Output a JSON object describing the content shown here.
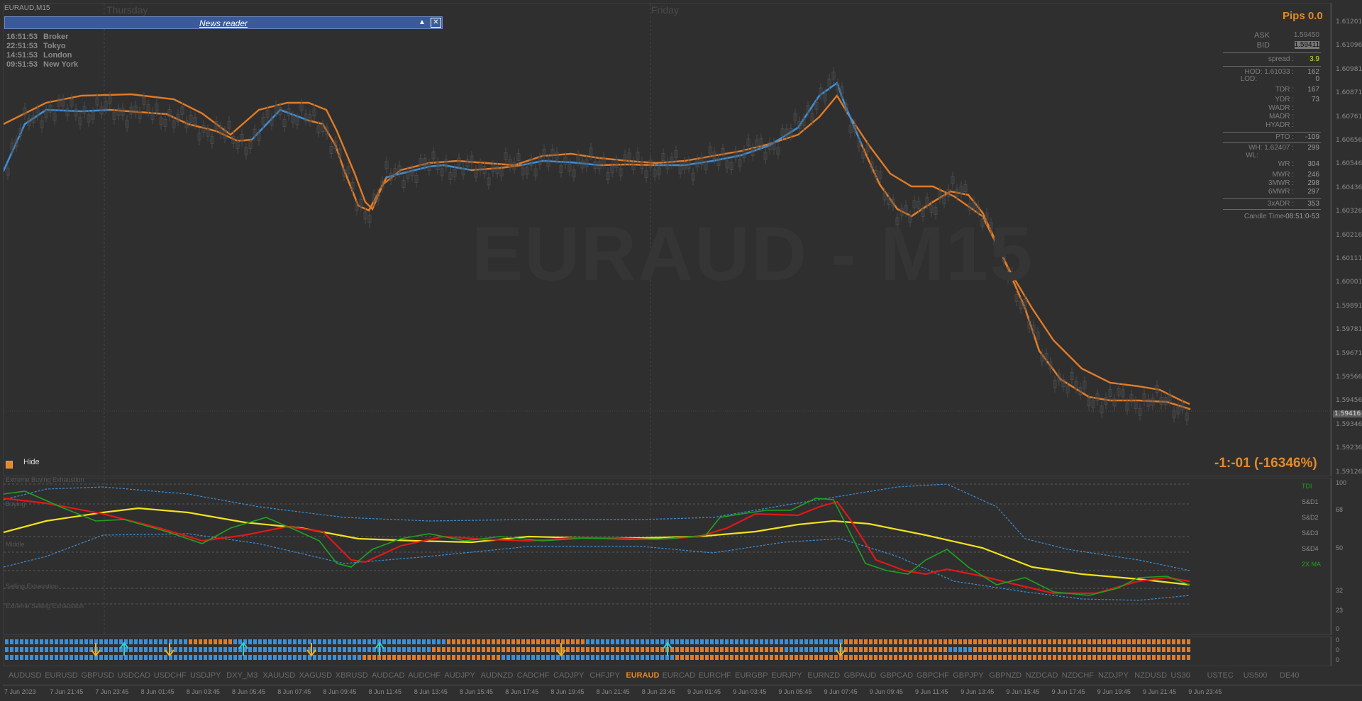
{
  "window": {
    "title": "EURAUD,M15"
  },
  "days": [
    {
      "label": "Thursday"
    },
    {
      "label": "Friday"
    }
  ],
  "news_reader": {
    "title": "News reader",
    "collapse_glyph": "▲",
    "close_glyph": "✕"
  },
  "clocks": [
    {
      "time": "16:51:53",
      "city": "Broker"
    },
    {
      "time": "22:51:53",
      "city": "Tokyo"
    },
    {
      "time": "14:51:53",
      "city": "London"
    },
    {
      "time": "09:51:53",
      "city": "New York"
    }
  ],
  "watermark": "EURAUD - M15",
  "hide_label": "Hide",
  "pnl_text": "-1:-01 (-16346%)",
  "info_panel": {
    "pips": "Pips 0.0",
    "ask_label": "ASK",
    "ask": "1.59450",
    "bid_label": "BID",
    "bid": "1.59411",
    "spread_label": "spread :",
    "spread": "3.9",
    "hod_label": "HOD: 1.61033 :",
    "hod": "162",
    "lod_label": "LOD:",
    "lod": "0",
    "tdr_label": "TDR :",
    "tdr": "167",
    "ydr_label": "YDR :",
    "ydr": "73",
    "wadr_label": "WADR :",
    "wadr": "",
    "madr_label": "MADR :",
    "madr": "",
    "hyadr_label": "HYADR :",
    "hyadr": "",
    "pto_label": "PTO :",
    "pto": "-109",
    "wh_label": "WH: 1.62407 :",
    "wh": "299",
    "wl_label": "WL:",
    "wl": "",
    "wr_label": "WR :",
    "wr": "304",
    "mwr_label": "MWR :",
    "mwr": "246",
    "mwr3_label": "3MWR :",
    "mwr3": "298",
    "mwr6_label": "6MWR :",
    "mwr6": "297",
    "adr3_label": "3xADR :",
    "adr3": "353",
    "candle_label": "Candle Time",
    "candle": "-08:51:0-53"
  },
  "price_axis": [
    "1.61201",
    "1.61096",
    "1.60981",
    "1.60871",
    "1.60761",
    "1.60656",
    "1.60546",
    "1.60436",
    "1.60326",
    "1.60216",
    "1.60111",
    "1.60001",
    "1.59891",
    "1.59781",
    "1.59671",
    "1.59566",
    "1.59456",
    "1.59346",
    "1.59236",
    "1.59126"
  ],
  "current_price": "1.59416",
  "oscillator": {
    "labels": {
      "extreme_buying": "Extreme Buying Exhaustion",
      "buying": "Buying",
      "middle": "Middle",
      "selling": "Selling Exhaustion",
      "extreme_selling": "Extreme Selling Exhaustion"
    },
    "right_labels": {
      "tdi": "TDI",
      "sd1": "S&D1",
      "sd2": "S&D2",
      "sd3": "S&D3",
      "sd4": "S&D4",
      "ma": "2X MA"
    },
    "axis": [
      "100",
      "68",
      "50",
      "32",
      "23",
      "0"
    ]
  },
  "blocks_axis": [
    "0",
    "0",
    "0"
  ],
  "symbols": [
    "AUDUSD",
    "EURUSD",
    "GBPUSD",
    "USDCAD",
    "USDCHF",
    "USDJPY",
    "DXY_M3",
    "XAUUSD",
    "XAGUSD",
    "XBRUSD",
    "AUDCAD",
    "AUDCHF",
    "AUDJPY",
    "AUDNZD",
    "CADCHF",
    "CADJPY",
    "CHFJPY",
    "EURAUD",
    "EURCAD",
    "EURCHF",
    "EURGBP",
    "EURJPY",
    "EURNZD",
    "GBPAUD",
    "GBPCAD",
    "GBPCHF",
    "GBPJPY",
    "GBPNZD",
    "NZDCAD",
    "NZDCHF",
    "NZDJPY",
    "NZDUSD",
    "US30",
    "USTEC",
    "US500",
    "DE40"
  ],
  "active_symbol": "EURAUD",
  "time_axis": [
    "7 Jun 2023",
    "7 Jun 21:45",
    "7 Jun 23:45",
    "8 Jun 01:45",
    "8 Jun 03:45",
    "8 Jun 05:45",
    "8 Jun 07:45",
    "8 Jun 09:45",
    "8 Jun 11:45",
    "8 Jun 13:45",
    "8 Jun 15:45",
    "8 Jun 17:45",
    "8 Jun 19:45",
    "8 Jun 21:45",
    "8 Jun 23:45",
    "9 Jun 01:45",
    "9 Jun 03:45",
    "9 Jun 05:45",
    "9 Jun 07:45",
    "9 Jun 09:45",
    "9 Jun 11:45",
    "9 Jun 13:45",
    "9 Jun 15:45",
    "9 Jun 17:45",
    "9 Jun 19:45",
    "9 Jun 21:45",
    "9 Jun 23:45"
  ],
  "colors": {
    "accent": "#e28a2b",
    "ma_blue": "#3d8fd6",
    "ma_orange": "#e07b28",
    "tdi_green": "#1fa31f",
    "tdi_red": "#e01818",
    "tdi_yellow": "#f2e21c",
    "band_blue": "#3d8fd6",
    "arrow_up": "#23d6e0",
    "arrow_down": "#f2b01c"
  }
}
